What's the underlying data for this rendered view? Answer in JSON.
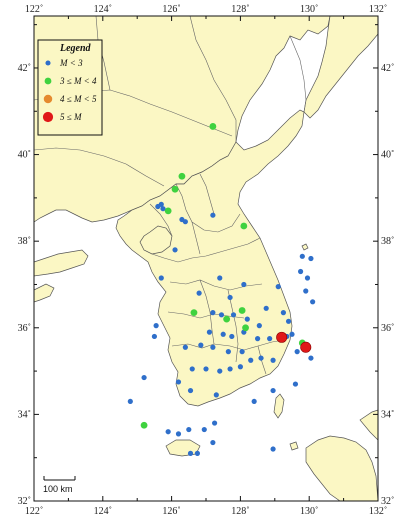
{
  "colors": {
    "sea": "#ffffff",
    "land": "#fbf7c4",
    "border": "#555555",
    "frame": "#111111",
    "m_lt_3": "#2f6fca",
    "m_3_4": "#3fd23f",
    "m_4_5": "#e58a2e",
    "m_ge_5": "#e01818"
  },
  "axes": {
    "lon_ticks": [
      "122˚",
      "124˚",
      "126˚",
      "128˚",
      "130˚",
      "132˚"
    ],
    "lat_ticks": [
      "32˚",
      "34˚",
      "36˚",
      "38˚",
      "40˚",
      "42˚"
    ]
  },
  "legend": {
    "title": "Legend",
    "items": [
      {
        "label": "M < 3",
        "color_key": "m_lt_3",
        "size": 3
      },
      {
        "label": "3 ≤ M < 4",
        "color_key": "m_3_4",
        "size": 4
      },
      {
        "label": "4 ≤ M < 5",
        "color_key": "m_4_5",
        "size": 5
      },
      {
        "label": "5 ≤ M",
        "color_key": "m_ge_5",
        "size": 6
      }
    ]
  },
  "scale_bar": {
    "label": "100 km"
  },
  "events": [
    {
      "lon": 127.2,
      "lat": 40.65,
      "class": "m_3_4"
    },
    {
      "lon": 126.3,
      "lat": 39.5,
      "class": "m_3_4"
    },
    {
      "lon": 126.1,
      "lat": 39.2,
      "class": "m_3_4"
    },
    {
      "lon": 125.7,
      "lat": 38.85,
      "class": "m_lt_3"
    },
    {
      "lon": 125.6,
      "lat": 38.8,
      "class": "m_lt_3"
    },
    {
      "lon": 125.75,
      "lat": 38.75,
      "class": "m_lt_3"
    },
    {
      "lon": 125.9,
      "lat": 38.7,
      "class": "m_3_4"
    },
    {
      "lon": 126.3,
      "lat": 38.5,
      "class": "m_lt_3"
    },
    {
      "lon": 126.4,
      "lat": 38.45,
      "class": "m_lt_3"
    },
    {
      "lon": 127.2,
      "lat": 38.6,
      "class": "m_lt_3"
    },
    {
      "lon": 128.1,
      "lat": 38.35,
      "class": "m_3_4"
    },
    {
      "lon": 126.1,
      "lat": 37.8,
      "class": "m_lt_3"
    },
    {
      "lon": 125.7,
      "lat": 37.15,
      "class": "m_lt_3"
    },
    {
      "lon": 127.4,
      "lat": 37.15,
      "class": "m_lt_3"
    },
    {
      "lon": 128.1,
      "lat": 37.0,
      "class": "m_lt_3"
    },
    {
      "lon": 129.8,
      "lat": 37.65,
      "class": "m_lt_3"
    },
    {
      "lon": 130.05,
      "lat": 37.6,
      "class": "m_lt_3"
    },
    {
      "lon": 129.75,
      "lat": 37.3,
      "class": "m_lt_3"
    },
    {
      "lon": 129.95,
      "lat": 37.15,
      "class": "m_lt_3"
    },
    {
      "lon": 129.1,
      "lat": 36.95,
      "class": "m_lt_3"
    },
    {
      "lon": 129.9,
      "lat": 36.85,
      "class": "m_lt_3"
    },
    {
      "lon": 130.1,
      "lat": 36.6,
      "class": "m_lt_3"
    },
    {
      "lon": 126.8,
      "lat": 36.8,
      "class": "m_lt_3"
    },
    {
      "lon": 127.7,
      "lat": 36.7,
      "class": "m_lt_3"
    },
    {
      "lon": 126.65,
      "lat": 36.35,
      "class": "m_3_4"
    },
    {
      "lon": 127.2,
      "lat": 36.35,
      "class": "m_lt_3"
    },
    {
      "lon": 127.45,
      "lat": 36.3,
      "class": "m_lt_3"
    },
    {
      "lon": 127.6,
      "lat": 36.2,
      "class": "m_3_4"
    },
    {
      "lon": 127.8,
      "lat": 36.3,
      "class": "m_lt_3"
    },
    {
      "lon": 128.05,
      "lat": 36.4,
      "class": "m_3_4"
    },
    {
      "lon": 128.2,
      "lat": 36.2,
      "class": "m_lt_3"
    },
    {
      "lon": 128.55,
      "lat": 36.05,
      "class": "m_lt_3"
    },
    {
      "lon": 128.75,
      "lat": 36.45,
      "class": "m_lt_3"
    },
    {
      "lon": 129.25,
      "lat": 36.35,
      "class": "m_lt_3"
    },
    {
      "lon": 129.4,
      "lat": 36.15,
      "class": "m_lt_3"
    },
    {
      "lon": 125.55,
      "lat": 36.05,
      "class": "m_lt_3"
    },
    {
      "lon": 127.1,
      "lat": 35.9,
      "class": "m_lt_3"
    },
    {
      "lon": 127.5,
      "lat": 35.85,
      "class": "m_lt_3"
    },
    {
      "lon": 127.75,
      "lat": 35.8,
      "class": "m_lt_3"
    },
    {
      "lon": 128.1,
      "lat": 35.9,
      "class": "m_lt_3"
    },
    {
      "lon": 128.15,
      "lat": 36.0,
      "class": "m_3_4"
    },
    {
      "lon": 128.5,
      "lat": 35.75,
      "class": "m_lt_3"
    },
    {
      "lon": 128.85,
      "lat": 35.75,
      "class": "m_lt_3"
    },
    {
      "lon": 129.2,
      "lat": 35.78,
      "class": "m_ge_5"
    },
    {
      "lon": 129.35,
      "lat": 35.8,
      "class": "m_lt_3"
    },
    {
      "lon": 129.5,
      "lat": 35.85,
      "class": "m_lt_3"
    },
    {
      "lon": 129.8,
      "lat": 35.65,
      "class": "m_3_4"
    },
    {
      "lon": 129.9,
      "lat": 35.55,
      "class": "m_ge_5"
    },
    {
      "lon": 129.65,
      "lat": 35.45,
      "class": "m_lt_3"
    },
    {
      "lon": 130.05,
      "lat": 35.3,
      "class": "m_lt_3"
    },
    {
      "lon": 126.4,
      "lat": 35.55,
      "class": "m_lt_3"
    },
    {
      "lon": 126.85,
      "lat": 35.6,
      "class": "m_lt_3"
    },
    {
      "lon": 127.2,
      "lat": 35.55,
      "class": "m_lt_3"
    },
    {
      "lon": 127.65,
      "lat": 35.45,
      "class": "m_lt_3"
    },
    {
      "lon": 128.05,
      "lat": 35.45,
      "class": "m_lt_3"
    },
    {
      "lon": 128.3,
      "lat": 35.25,
      "class": "m_lt_3"
    },
    {
      "lon": 128.6,
      "lat": 35.3,
      "class": "m_lt_3"
    },
    {
      "lon": 128.95,
      "lat": 35.25,
      "class": "m_lt_3"
    },
    {
      "lon": 126.6,
      "lat": 35.05,
      "class": "m_lt_3"
    },
    {
      "lon": 127.0,
      "lat": 35.05,
      "class": "m_lt_3"
    },
    {
      "lon": 127.4,
      "lat": 35.0,
      "class": "m_lt_3"
    },
    {
      "lon": 127.7,
      "lat": 35.05,
      "class": "m_lt_3"
    },
    {
      "lon": 128.0,
      "lat": 35.1,
      "class": "m_lt_3"
    },
    {
      "lon": 125.2,
      "lat": 34.85,
      "class": "m_lt_3"
    },
    {
      "lon": 126.2,
      "lat": 34.75,
      "class": "m_lt_3"
    },
    {
      "lon": 126.55,
      "lat": 34.55,
      "class": "m_lt_3"
    },
    {
      "lon": 127.3,
      "lat": 34.45,
      "class": "m_lt_3"
    },
    {
      "lon": 128.4,
      "lat": 34.3,
      "class": "m_lt_3"
    },
    {
      "lon": 128.95,
      "lat": 34.55,
      "class": "m_lt_3"
    },
    {
      "lon": 129.6,
      "lat": 34.7,
      "class": "m_lt_3"
    },
    {
      "lon": 124.8,
      "lat": 34.3,
      "class": "m_lt_3"
    },
    {
      "lon": 125.2,
      "lat": 33.75,
      "class": "m_3_4"
    },
    {
      "lon": 125.9,
      "lat": 33.6,
      "class": "m_lt_3"
    },
    {
      "lon": 126.2,
      "lat": 33.55,
      "class": "m_lt_3"
    },
    {
      "lon": 126.5,
      "lat": 33.65,
      "class": "m_lt_3"
    },
    {
      "lon": 126.95,
      "lat": 33.65,
      "class": "m_lt_3"
    },
    {
      "lon": 127.25,
      "lat": 33.8,
      "class": "m_lt_3"
    },
    {
      "lon": 127.2,
      "lat": 33.35,
      "class": "m_lt_3"
    },
    {
      "lon": 126.55,
      "lat": 33.1,
      "class": "m_lt_3"
    },
    {
      "lon": 126.75,
      "lat": 33.1,
      "class": "m_lt_3"
    },
    {
      "lon": 128.95,
      "lat": 33.2,
      "class": "m_lt_3"
    },
    {
      "lon": 125.5,
      "lat": 35.8,
      "class": "m_lt_3"
    }
  ]
}
